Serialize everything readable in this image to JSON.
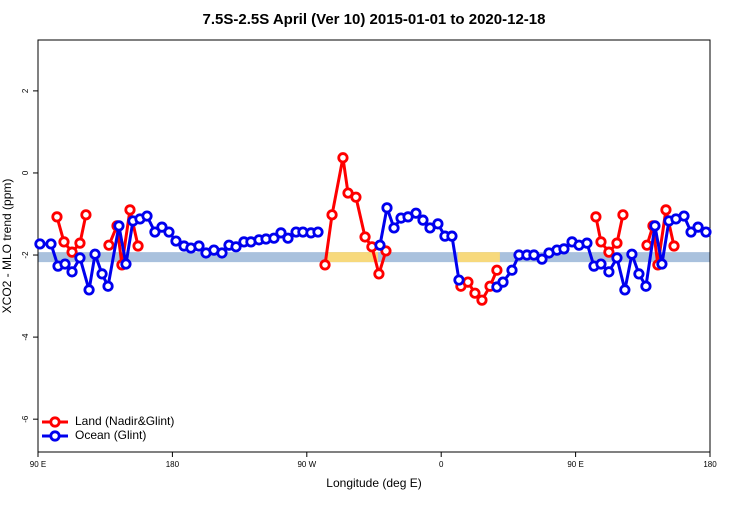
{
  "chart_data": {
    "type": "line",
    "title": "7.5S-2.5S April (Ver 10)   2015-01-01 to 2020-12-18",
    "xlabel": "Longitude (deg E)",
    "ylabel": "XCO2 - MLO trend (ppm)",
    "xlim": [
      90,
      540
    ],
    "ylim": [
      -6.8,
      3.24
    ],
    "xticks": [
      {
        "value": 90,
        "label": "90 E"
      },
      180,
      {
        "value": 270,
        "label": "90 W"
      },
      {
        "value": 360,
        "label": "0"
      },
      {
        "value": 450,
        "label": "90 E"
      },
      {
        "value": 540,
        "label": "180"
      }
    ],
    "yticks": [
      -6,
      -4,
      -2,
      0,
      2
    ],
    "legend": "bottom-left",
    "band": {
      "value": -2.05,
      "color": "#a9c1dd",
      "highlight_color": "#f7d97c",
      "highlights": [
        [
          282.8,
          317.7
        ],
        [
          371.2,
          399.3
        ]
      ]
    },
    "series": [
      {
        "name": "Land (Nadir&Glint)",
        "color": "#ff0000",
        "x": [
          102.7,
          107.4,
          112.8,
          118.1,
          122.1,
          null,
          137.5,
          142.9,
          146.2,
          151.6,
          157.0,
          null,
          282.2,
          286.9,
          294.2,
          297.6,
          302.9,
          309.0,
          313.6,
          318.3,
          323.0,
          null,
          373.2,
          377.9,
          382.6,
          387.3,
          392.7,
          397.3,
          null,
          463.6,
          467.0,
          472.3,
          477.7,
          481.7,
          null,
          497.8,
          501.8,
          505.1,
          510.5,
          515.9
        ],
        "values": [
          -1.07,
          -1.68,
          -1.93,
          -1.71,
          -1.02,
          null,
          -1.76,
          -1.29,
          -2.24,
          -0.9,
          -1.78,
          null,
          -2.24,
          -1.02,
          0.37,
          -0.49,
          -0.59,
          -1.56,
          -1.8,
          -2.46,
          -1.9,
          null,
          -2.76,
          -2.66,
          -2.93,
          -3.1,
          -2.76,
          -2.37,
          null,
          -1.07,
          -1.68,
          -1.93,
          -1.71,
          -1.02,
          null,
          -1.76,
          -1.29,
          -2.24,
          -0.9,
          -1.78
        ]
      },
      {
        "name": "Ocean (Glint)",
        "color": "#0000ee",
        "x": [
          91.3,
          98.7,
          103.4,
          108.1,
          112.8,
          118.1,
          124.2,
          128.2,
          132.9,
          136.9,
          144.2,
          148.9,
          153.6,
          158.3,
          163.0,
          168.3,
          173.0,
          177.7,
          182.4,
          187.8,
          192.4,
          197.8,
          202.5,
          207.8,
          213.2,
          217.9,
          222.6,
          227.9,
          232.6,
          238.0,
          242.7,
          248.0,
          252.7,
          257.4,
          262.8,
          267.4,
          272.8,
          277.5,
          null,
          319.0,
          323.7,
          328.4,
          333.1,
          337.8,
          343.1,
          347.8,
          352.5,
          357.8,
          362.5,
          367.2,
          371.9,
          null,
          397.3,
          401.4,
          407.4,
          412.1,
          417.4,
          422.1,
          427.5,
          432.2,
          437.5,
          442.2,
          447.6,
          452.3,
          457.6,
          462.3,
          467.0,
          472.3,
          477.7,
          483.0,
          487.7,
          492.4,
          497.1,
          503.1,
          507.8,
          512.5,
          517.2,
          522.6,
          527.3,
          532.0,
          537.3
        ],
        "values": [
          -1.73,
          -1.73,
          -2.27,
          -2.22,
          -2.41,
          -2.07,
          -2.85,
          -1.98,
          -2.46,
          -2.76,
          -1.29,
          -2.22,
          -1.17,
          -1.12,
          -1.05,
          -1.44,
          -1.32,
          -1.44,
          -1.66,
          -1.78,
          -1.83,
          -1.78,
          -1.95,
          -1.88,
          -1.95,
          -1.76,
          -1.8,
          -1.68,
          -1.68,
          -1.63,
          -1.61,
          -1.59,
          -1.46,
          -1.59,
          -1.44,
          -1.44,
          -1.46,
          -1.44,
          null,
          -1.76,
          -0.85,
          -1.34,
          -1.1,
          -1.07,
          -0.98,
          -1.15,
          -1.34,
          -1.24,
          -1.54,
          -1.54,
          -2.61,
          null,
          -2.78,
          -2.66,
          -2.37,
          -2.0,
          -2.0,
          -2.0,
          -2.1,
          -1.95,
          -1.88,
          -1.85,
          -1.68,
          -1.76,
          -1.71,
          -2.27,
          -2.22,
          -2.41,
          -2.07,
          -2.85,
          -1.98,
          -2.46,
          -2.76,
          -1.29,
          -2.22,
          -1.17,
          -1.12,
          -1.05,
          -1.44,
          -1.32,
          -1.44
        ]
      }
    ]
  }
}
